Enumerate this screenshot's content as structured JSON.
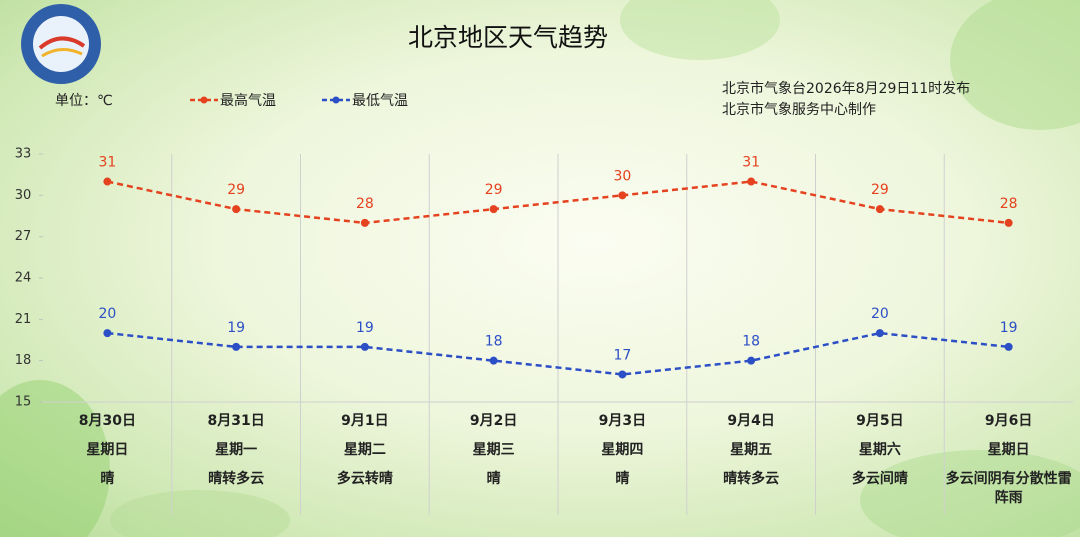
{
  "chart_data": {
    "type": "line",
    "title": "北京地区天气趋势",
    "unit_label": "单位：℃",
    "source": [
      "北京市气象台2026年8月29日11时发布",
      "北京市气象服务中心制作"
    ],
    "categories": [
      "8月30日",
      "8月31日",
      "9月1日",
      "9月2日",
      "9月3日",
      "9月4日",
      "9月5日",
      "9月6日"
    ],
    "weekdays": [
      "星期日",
      "星期一",
      "星期二",
      "星期三",
      "星期四",
      "星期五",
      "星期六",
      "星期日"
    ],
    "weather": [
      "晴",
      "晴转多云",
      "多云转晴",
      "晴",
      "晴",
      "晴转多云",
      "多云间晴",
      "多云间阴有分散性雷阵雨"
    ],
    "series": [
      {
        "name": "最高气温",
        "color": "#e5421f",
        "values": [
          31,
          29,
          28,
          29,
          30,
          31,
          29,
          28
        ]
      },
      {
        "name": "最低气温",
        "color": "#2d4fc6",
        "values": [
          20,
          19,
          19,
          18,
          17,
          18,
          20,
          19
        ]
      }
    ],
    "ylim": [
      15,
      33
    ],
    "yticks": [
      15,
      18,
      21,
      24,
      27,
      30,
      33
    ],
    "grid": true,
    "legend_position": "top"
  }
}
